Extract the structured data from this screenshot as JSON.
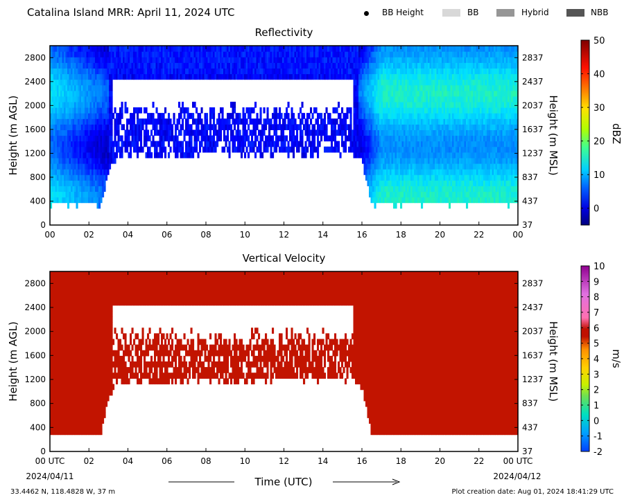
{
  "page": {
    "title": "Catalina Island MRR:  April 11, 2024 UTC",
    "footer_left": "33.4462 N, 118.4828 W, 37 m",
    "footer_right": "Plot creation date: Aug 01, 2024 18:41:29 UTC",
    "xlabel": "Time (UTC)",
    "date_start": "2024/04/11",
    "date_end": "2024/04/12"
  },
  "legend": {
    "items": [
      {
        "label": "BB Height",
        "marker": "dot",
        "color": "#000000"
      },
      {
        "label": "BB",
        "marker": "rect",
        "color": "#d8d8d8"
      },
      {
        "label": "Hybrid",
        "marker": "rect",
        "color": "#969696"
      },
      {
        "label": "NBB",
        "marker": "rect",
        "color": "#555555"
      }
    ]
  },
  "chart_data": [
    {
      "type": "heatmap",
      "title": "Reflectivity",
      "xlabel": "",
      "ylabel": "Height (m AGL)",
      "ylabel_right": "Height (m MSL)",
      "colorbar_label": "dBZ",
      "colorbar_range": [
        -5,
        50
      ],
      "colorbar_ticks": [
        "50",
        "40",
        "30",
        "20",
        "10",
        "0"
      ],
      "colormap": [
        "#00007f",
        "#0000ff",
        "#0080ff",
        "#00e0ff",
        "#40ff80",
        "#c0ff00",
        "#ffd000",
        "#ff6000",
        "#e00000",
        "#800000"
      ],
      "xlim": [
        0,
        24
      ],
      "ylim": [
        0,
        3000
      ],
      "x_ticks": [
        "00",
        "02",
        "04",
        "06",
        "08",
        "10",
        "12",
        "14",
        "16",
        "18",
        "20",
        "22",
        "00"
      ],
      "y_ticks_left": [
        "0",
        "400",
        "800",
        "1200",
        "1600",
        "2000",
        "2400",
        "2800"
      ],
      "y_ticks_right": [
        "37",
        "437",
        "837",
        "1237",
        "1637",
        "2037",
        "2437",
        "2837"
      ],
      "echo_base_m": [
        [
          0,
          350
        ],
        [
          2.6,
          350
        ],
        [
          3.0,
          900
        ],
        [
          3.5,
          1150
        ],
        [
          15.5,
          1200
        ],
        [
          16.0,
          1050
        ],
        [
          16.5,
          350
        ],
        [
          24,
          350
        ]
      ],
      "gap_top_m": [
        [
          3.2,
          2330
        ],
        [
          15.6,
          2330
        ]
      ],
      "gap_bottom_m": [
        [
          3.2,
          1900
        ],
        [
          15.6,
          1900
        ]
      ],
      "typical_dbz": [
        [
          0,
          10
        ],
        [
          3,
          2
        ],
        [
          15.8,
          2
        ],
        [
          17,
          12
        ],
        [
          24,
          12
        ]
      ]
    },
    {
      "type": "heatmap",
      "title": "Vertical Velocity",
      "xlabel": "Time (UTC)",
      "ylabel": "Height (m AGL)",
      "ylabel_right": "Height (m MSL)",
      "colorbar_label": "m/s",
      "colorbar_range": [
        -2,
        10
      ],
      "colorbar_ticks": [
        "10",
        "9",
        "8",
        "7",
        "6",
        "5",
        "4",
        "3",
        "2",
        "1",
        "0",
        "-1",
        "-2"
      ],
      "colormap": [
        "#0050ff",
        "#00b0ff",
        "#00e0c0",
        "#60e060",
        "#c0ff00",
        "#ffd000",
        "#ff9000",
        "#c01000",
        "#c01000",
        "#ff80c0",
        "#e060e0",
        "#a000a0"
      ],
      "xlim": [
        0,
        24
      ],
      "ylim": [
        0,
        3000
      ],
      "x_ticks": [
        "00 UTC",
        "02",
        "04",
        "06",
        "08",
        "10",
        "12",
        "14",
        "16",
        "18",
        "20",
        "22",
        "00 UTC"
      ],
      "y_ticks_left": [
        "0",
        "400",
        "800",
        "1200",
        "1600",
        "2000",
        "2400",
        "2800"
      ],
      "y_ticks_right": [
        "37",
        "437",
        "837",
        "1237",
        "1637",
        "2037",
        "2437",
        "2837"
      ],
      "echo_base_m": [
        [
          0,
          280
        ],
        [
          2.6,
          280
        ],
        [
          3.0,
          900
        ],
        [
          3.5,
          1150
        ],
        [
          15.5,
          1200
        ],
        [
          16.0,
          1050
        ],
        [
          16.5,
          280
        ],
        [
          24,
          280
        ]
      ],
      "gap_top_m": [
        [
          3.2,
          2330
        ],
        [
          15.6,
          2330
        ]
      ],
      "gap_bottom_m": [
        [
          3.2,
          1900
        ],
        [
          15.6,
          1900
        ]
      ],
      "typical_velocity": [
        [
          0,
          6
        ],
        [
          24,
          6
        ]
      ]
    }
  ]
}
